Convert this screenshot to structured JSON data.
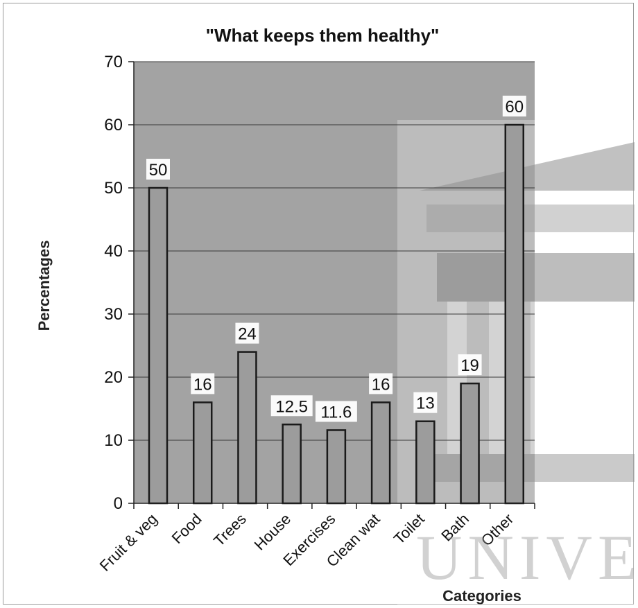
{
  "chart_data": {
    "type": "bar",
    "title": "\"What keeps them healthy\"",
    "xlabel": "Categories",
    "ylabel": "Percentages",
    "categories": [
      "Fruit & veg",
      "Food",
      "Trees",
      "House",
      "Exercises",
      "Clean wat",
      "Toilet",
      "Bath",
      "Other"
    ],
    "values": [
      50,
      16,
      24,
      12.5,
      11.6,
      16,
      13,
      19,
      60
    ],
    "data_labels": [
      "50",
      "16",
      "24",
      "12.5",
      "11.6",
      "16",
      "13",
      "19",
      "60"
    ],
    "ylim": [
      0,
      70
    ],
    "yticks": [
      0,
      10,
      20,
      30,
      40,
      50,
      60,
      70
    ],
    "grid": true,
    "legend": "none",
    "colors": {
      "plot_bg": "#a3a3a3",
      "bar_fill": "#9c9c9c",
      "bar_stroke": "#1a1a1a",
      "gridline": "#3a3a3a"
    }
  },
  "watermark": {
    "text": "UNIVE"
  }
}
